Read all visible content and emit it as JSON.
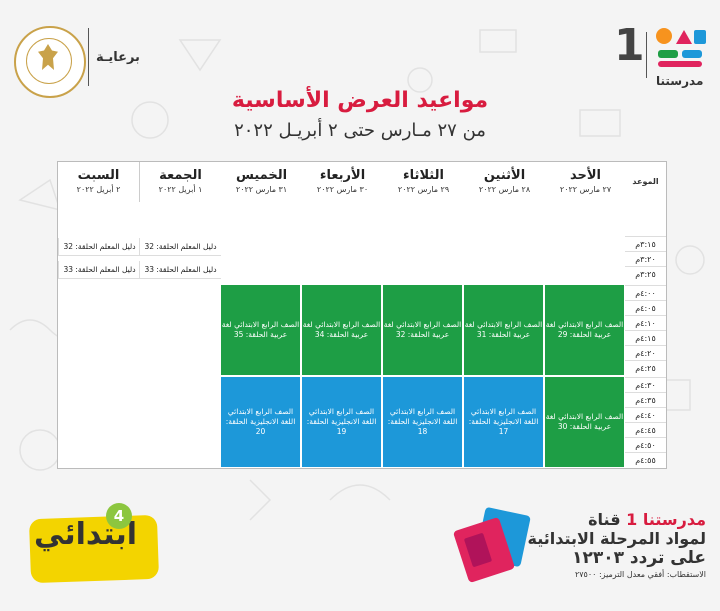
{
  "header": {
    "sponsor": "برعايـة",
    "brand_number": "1",
    "brand_name": "مدرستنا"
  },
  "title": "مواعيد العرض الأساسية",
  "subtitle": "من ٢٧ مـارس حتى ٢ أبريـل ٢٠٢٢",
  "table": {
    "corner": "الموعد",
    "days": [
      {
        "name": "الأحد",
        "date": "٢٧ مارس ٢٠٢٢"
      },
      {
        "name": "الأثنين",
        "date": "٢٨ مارس ٢٠٢٢"
      },
      {
        "name": "الثلاثاء",
        "date": "٢٩ مارس ٢٠٢٢"
      },
      {
        "name": "الأربعاء",
        "date": "٣٠ مارس ٢٠٢٢"
      },
      {
        "name": "الخميس",
        "date": "٣١ مارس ٢٠٢٢"
      },
      {
        "name": "الجمعة",
        "date": "١ أبريل ٢٠٢٢"
      },
      {
        "name": "السبت",
        "date": "٢ أبريل ٢٠٢٢"
      }
    ],
    "times": [
      "٣:١٥م",
      "٣:٢٠م",
      "٣:٢٥م",
      "٤:٠٠م",
      "٤:٠٥م",
      "٤:١٠م",
      "٤:١٥م",
      "٤:٢٠م",
      "٤:٢٥م",
      "٤:٣٠م",
      "٤:٣٥م",
      "٤:٤٠م",
      "٤:٤٥م",
      "٤:٥٠م",
      "٤:٥٥م"
    ],
    "guides": {
      "fri_1": "دليل المعلم الحلقة: 32",
      "sat_1": "دليل المعلم الحلقة: 32",
      "fri_2": "دليل المعلم الحلقة: 33",
      "sat_2": "دليل المعلم الحلقة: 33"
    },
    "arabic": {
      "sun": "الصف الرابع الابتدائي لغة عربية الحلقة: 29",
      "mon": "الصف الرابع الابتدائي لغة عربية الحلقة: 31",
      "tue": "الصف الرابع الابتدائي لغة عربية الحلقة: 32",
      "wed": "الصف الرابع الابتدائي لغة عربية الحلقة: 34",
      "thu": "الصف الرابع الابتدائي لغة عربية الحلقة: 35"
    },
    "english": {
      "sun": "الصف الرابع الابتدائي لغة عربية الحلقة: 30",
      "mon": "الصف الرابع الابتدائي اللغة الانجليزية الحلقة: 17",
      "tue": "الصف الرابع الابتدائي اللغة الانجليزية الحلقة: 18",
      "wed": "الصف الرابع الابتدائي اللغة الانجليزية الحلقة: 19",
      "thu": "الصف الرابع الابتدائي اللغة الانجليزية الحلقة: 20"
    }
  },
  "footer": {
    "badge_text": "ابتدائي",
    "badge_number": "4",
    "channel_prefix": "قناة",
    "channel_name": "مدرستنا 1",
    "line2": "لمواد المرحلة الابتدائية",
    "line3": "على تردد ١٢٣٠٣",
    "line4": "الاستقطاب: أفقي معدل الترميز: ٢٧٥٠٠"
  },
  "colors": {
    "title": "#d81c3f",
    "arabic_block": "#1e9e45",
    "english_block": "#1d98d9",
    "badge": "#f3d400"
  }
}
